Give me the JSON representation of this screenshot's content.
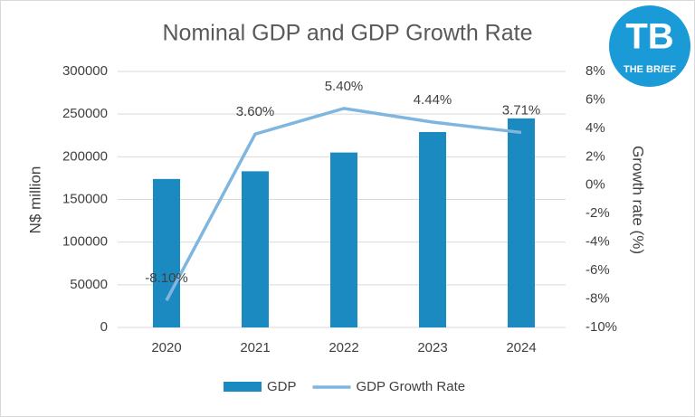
{
  "chart_data": {
    "type": "bar-line",
    "title": "Nominal GDP and GDP Growth Rate",
    "y_label": "N$ million",
    "y2_label": "Growth rate (%)",
    "categories": [
      "2020",
      "2021",
      "2022",
      "2023",
      "2024"
    ],
    "series": [
      {
        "name": "GDP",
        "type": "bar",
        "color": "#1a8ac0",
        "values": [
          174000,
          183000,
          205000,
          229000,
          245000
        ]
      },
      {
        "name": "GDP Growth Rate",
        "type": "line",
        "axis": "y2",
        "color": "#7fb6df",
        "values": [
          -8.1,
          3.6,
          5.4,
          4.44,
          3.71
        ],
        "value_labels": [
          "-8.10%",
          "3.60%",
          "5.40%",
          "4.44%",
          "3.71%"
        ]
      }
    ],
    "ylim": [
      0,
      300000
    ],
    "yticks": [
      0,
      50000,
      100000,
      150000,
      200000,
      250000,
      300000
    ],
    "y2lim": [
      -10,
      8
    ],
    "y2ticks": [
      {
        "value": -10,
        "label": "-10%"
      },
      {
        "value": -8,
        "label": "-8%"
      },
      {
        "value": -6,
        "label": "-6%"
      },
      {
        "value": -4,
        "label": "-4%"
      },
      {
        "value": -2,
        "label": "-2%"
      },
      {
        "value": 0,
        "label": "0%"
      },
      {
        "value": 2,
        "label": "2%"
      },
      {
        "value": 4,
        "label": "4%"
      },
      {
        "value": 6,
        "label": "6%"
      },
      {
        "value": 8,
        "label": "8%"
      }
    ],
    "grid": true,
    "legend": "bottom"
  },
  "logo": {
    "initials": "TB",
    "name": "THE BR/EF"
  }
}
